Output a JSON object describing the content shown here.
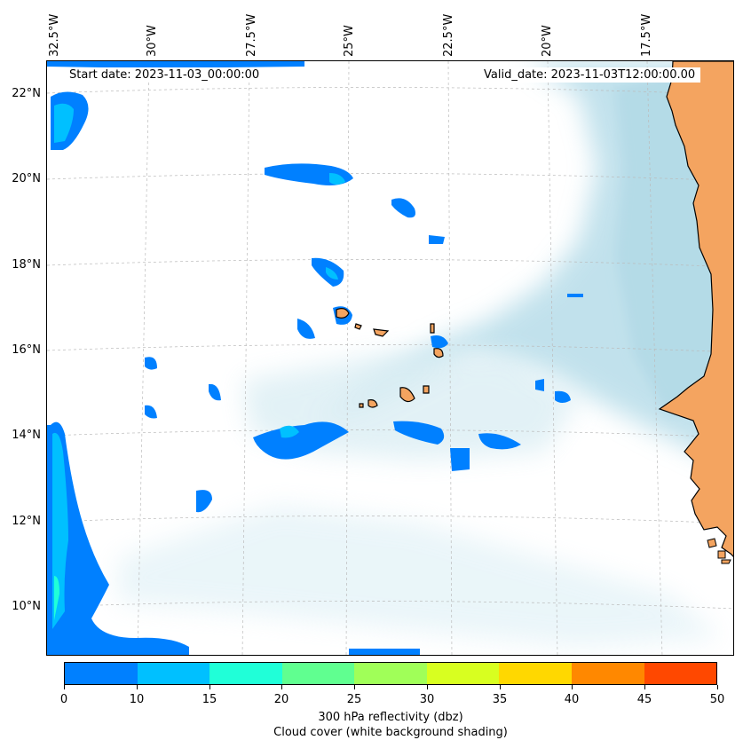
{
  "map": {
    "start_date": "Start date: 2023-11-03_00:00:00",
    "valid_date": "Valid_date: 2023-11-03T12:00:00.00",
    "lon_labels": [
      "32.5°W",
      "30°W",
      "27.5°W",
      "25°W",
      "22.5°W",
      "20°W",
      "17.5°W"
    ],
    "lat_labels": [
      "22°N",
      "20°N",
      "18°N",
      "16°N",
      "14°N",
      "12°N",
      "10°N"
    ]
  },
  "colorbar": {
    "ticks": [
      "0",
      "10",
      "15",
      "20",
      "25",
      "30",
      "35",
      "40",
      "45",
      "50"
    ],
    "colors": [
      "#0080ff",
      "#00c0ff",
      "#20ffd8",
      "#60ff90",
      "#a0ff58",
      "#d8ff20",
      "#ffd800",
      "#ff8800",
      "#ff4800"
    ],
    "label_line1": "300 hPa reflectivity (dbz)",
    "label_line2": "Cloud cover (white background shading)"
  },
  "colors": {
    "land": "#f4a460",
    "cloud": "#add8e6",
    "refl_low": "#0080ff",
    "refl_mid": "#00c0ff",
    "refl_high": "#20ffd8"
  }
}
